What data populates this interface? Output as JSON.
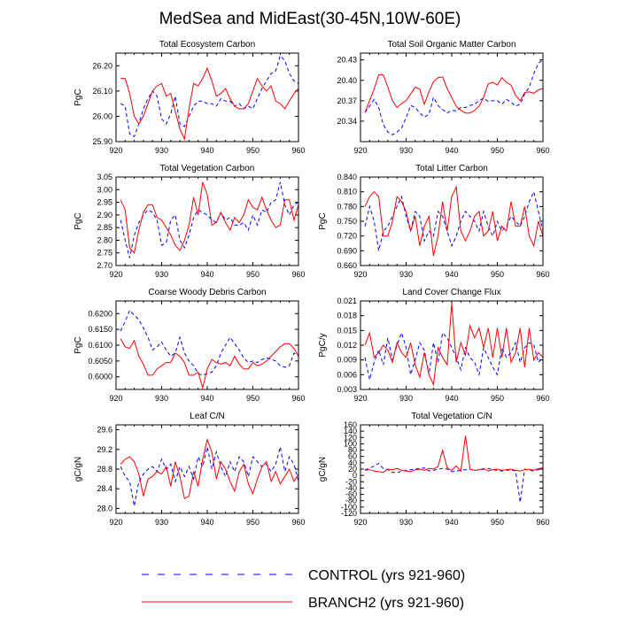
{
  "figure": {
    "title": "MedSea and MidEast(30-45N,10W-60E)",
    "legend": [
      {
        "label": "CONTROL (yrs 921-960)",
        "color": "#0000ff",
        "dash": true
      },
      {
        "label": "BRANCH2 (yrs 921-960)",
        "color": "#ff0000",
        "dash": false
      }
    ]
  },
  "chart_data": [
    {
      "type": "line",
      "title": "Total Ecosystem Carbon",
      "ylabel": "PgC",
      "xlabel": "",
      "xlim": [
        920,
        960
      ],
      "xticks": [
        920,
        930,
        940,
        950,
        960
      ],
      "ylim": [
        25.9,
        26.25
      ],
      "yticks": [
        25.9,
        26.0,
        26.1,
        26.2
      ],
      "ytick_labels": [
        "25.90",
        "26.00",
        "26.10",
        "26.20"
      ],
      "x_start": 921,
      "series": [
        {
          "name": "CONTROL",
          "color": "#0000ff",
          "dashed": true,
          "values": [
            26.05,
            26.04,
            25.93,
            25.92,
            25.97,
            26.03,
            26.07,
            26.1,
            26.08,
            25.99,
            25.97,
            26.01,
            26.08,
            25.97,
            25.96,
            26.0,
            26.04,
            26.06,
            26.06,
            26.05,
            26.05,
            26.04,
            26.07,
            26.06,
            26.06,
            26.04,
            26.05,
            26.03,
            26.04,
            26.03,
            26.07,
            26.11,
            26.14,
            26.17,
            26.18,
            26.24,
            26.22,
            26.17,
            26.14,
            26.13
          ]
        },
        {
          "name": "BRANCH2",
          "color": "#ff0000",
          "dashed": false,
          "values": [
            26.15,
            26.15,
            26.09,
            26.0,
            25.97,
            26.0,
            26.05,
            26.1,
            26.12,
            26.13,
            26.08,
            26.09,
            26.02,
            25.95,
            25.91,
            26.03,
            26.13,
            26.12,
            26.15,
            26.19,
            26.14,
            26.08,
            26.09,
            26.11,
            26.07,
            26.04,
            26.03,
            26.03,
            26.05,
            26.1,
            26.15,
            26.12,
            26.1,
            26.12,
            26.06,
            26.05,
            26.03,
            26.06,
            26.09,
            26.11
          ]
        }
      ]
    },
    {
      "type": "line",
      "title": "Total Soil Organic Matter Carbon",
      "ylabel": "",
      "xlabel": "",
      "xlim": [
        920,
        960
      ],
      "xticks": [
        920,
        930,
        940,
        950,
        960
      ],
      "ylim": [
        20.31,
        20.44
      ],
      "yticks": [
        20.34,
        20.37,
        20.4,
        20.43
      ],
      "ytick_labels": [
        "20.34",
        "20.37",
        "20.40",
        "20.43"
      ],
      "x_start": 921,
      "series": [
        {
          "name": "CONTROL",
          "color": "#0000ff",
          "dashed": true,
          "values": [
            20.353,
            20.362,
            20.372,
            20.36,
            20.335,
            20.324,
            20.32,
            20.324,
            20.33,
            20.345,
            20.363,
            20.36,
            20.352,
            20.346,
            20.35,
            20.375,
            20.363,
            20.357,
            20.352,
            20.356,
            20.355,
            20.36,
            20.36,
            20.363,
            20.365,
            20.37,
            20.374,
            20.369,
            20.37,
            20.37,
            20.365,
            20.372,
            20.368,
            20.362,
            20.365,
            20.38,
            20.39,
            20.41,
            20.425,
            20.43
          ]
        },
        {
          "name": "BRANCH2",
          "color": "#ff0000",
          "dashed": false,
          "values": [
            20.353,
            20.37,
            20.387,
            20.408,
            20.408,
            20.39,
            20.37,
            20.36,
            20.366,
            20.37,
            20.38,
            20.39,
            20.387,
            20.365,
            20.383,
            20.398,
            20.404,
            20.405,
            20.388,
            20.375,
            20.362,
            20.356,
            20.352,
            20.352,
            20.356,
            20.362,
            20.375,
            20.395,
            20.397,
            20.393,
            20.404,
            20.397,
            20.393,
            20.378,
            20.37,
            20.382,
            20.383,
            20.381,
            20.386,
            20.388
          ]
        }
      ]
    },
    {
      "type": "line",
      "title": "Total Vegetation Carbon",
      "ylabel": "PgC",
      "xlabel": "",
      "xlim": [
        920,
        960
      ],
      "xticks": [
        920,
        930,
        940,
        950,
        960
      ],
      "ylim": [
        2.7,
        3.05
      ],
      "yticks": [
        2.7,
        2.75,
        2.8,
        2.85,
        2.9,
        2.95,
        3.0,
        3.05
      ],
      "ytick_labels": [
        "2.70",
        "2.75",
        "2.80",
        "2.85",
        "2.90",
        "2.95",
        "3.00",
        "3.05"
      ],
      "x_start": 921,
      "series": [
        {
          "name": "CONTROL",
          "color": "#0000ff",
          "dashed": true,
          "values": [
            2.88,
            2.8,
            2.73,
            2.82,
            2.87,
            2.9,
            2.92,
            2.91,
            2.88,
            2.78,
            2.79,
            2.88,
            2.9,
            2.8,
            2.77,
            2.82,
            2.89,
            2.92,
            2.91,
            2.9,
            2.88,
            2.87,
            2.91,
            2.88,
            2.89,
            2.86,
            2.86,
            2.87,
            2.84,
            2.9,
            2.86,
            2.92,
            2.91,
            2.95,
            2.96,
            3.03,
            2.94,
            2.9,
            2.94,
            2.95
          ]
        },
        {
          "name": "BRANCH2",
          "color": "#ff0000",
          "dashed": false,
          "values": [
            2.96,
            2.92,
            2.77,
            2.75,
            2.84,
            2.91,
            2.94,
            2.94,
            2.89,
            2.88,
            2.85,
            2.82,
            2.78,
            2.76,
            2.8,
            2.86,
            2.97,
            2.9,
            3.03,
            2.98,
            2.86,
            2.87,
            2.91,
            2.87,
            2.84,
            2.89,
            2.87,
            2.9,
            2.96,
            2.93,
            2.92,
            2.97,
            2.92,
            2.88,
            2.85,
            2.86,
            2.96,
            2.96,
            2.88,
            2.94
          ]
        }
      ]
    },
    {
      "type": "line",
      "title": "Total Litter Carbon",
      "ylabel": "PgC",
      "xlabel": "",
      "xlim": [
        920,
        960
      ],
      "xticks": [
        920,
        930,
        940,
        950,
        960
      ],
      "ylim": [
        0.66,
        0.84
      ],
      "yticks": [
        0.66,
        0.69,
        0.72,
        0.75,
        0.78,
        0.81,
        0.84
      ],
      "ytick_labels": [
        "0.660",
        "0.690",
        "0.720",
        "0.750",
        "0.780",
        "0.810",
        "0.840"
      ],
      "x_start": 921,
      "series": [
        {
          "name": "CONTROL",
          "color": "#0000ff",
          "dashed": true,
          "values": [
            0.74,
            0.78,
            0.75,
            0.69,
            0.73,
            0.74,
            0.76,
            0.78,
            0.8,
            0.76,
            0.73,
            0.77,
            0.76,
            0.71,
            0.73,
            0.72,
            0.77,
            0.76,
            0.73,
            0.7,
            0.72,
            0.75,
            0.77,
            0.76,
            0.75,
            0.73,
            0.77,
            0.74,
            0.72,
            0.75,
            0.73,
            0.74,
            0.76,
            0.75,
            0.74,
            0.76,
            0.79,
            0.81,
            0.77,
            0.73
          ]
        },
        {
          "name": "BRANCH2",
          "color": "#ff0000",
          "dashed": false,
          "values": [
            0.78,
            0.8,
            0.81,
            0.8,
            0.72,
            0.72,
            0.75,
            0.8,
            0.79,
            0.77,
            0.73,
            0.76,
            0.7,
            0.74,
            0.76,
            0.68,
            0.72,
            0.79,
            0.73,
            0.8,
            0.82,
            0.73,
            0.71,
            0.73,
            0.76,
            0.77,
            0.72,
            0.73,
            0.77,
            0.71,
            0.74,
            0.73,
            0.79,
            0.74,
            0.74,
            0.78,
            0.72,
            0.7,
            0.75,
            0.72
          ]
        }
      ]
    },
    {
      "type": "line",
      "title": "Coarse Woody Debris Carbon",
      "ylabel": "PgC",
      "xlabel": "",
      "xlim": [
        920,
        960
      ],
      "xticks": [
        920,
        930,
        940,
        950,
        960
      ],
      "ylim": [
        0.596,
        0.624
      ],
      "yticks": [
        0.6,
        0.605,
        0.61,
        0.615,
        0.62
      ],
      "ytick_labels": [
        "0.6000",
        "0.6050",
        "0.6100",
        "0.6150",
        "0.6200"
      ],
      "x_start": 921,
      "series": [
        {
          "name": "CONTROL",
          "color": "#0000ff",
          "dashed": true,
          "values": [
            0.6145,
            0.6175,
            0.621,
            0.6195,
            0.618,
            0.6155,
            0.6125,
            0.6085,
            0.6095,
            0.611,
            0.6085,
            0.6065,
            0.6075,
            0.6125,
            0.6075,
            0.605,
            0.6035,
            0.601,
            0.6005,
            0.601,
            0.6015,
            0.6035,
            0.6075,
            0.61,
            0.6125,
            0.6105,
            0.6085,
            0.606,
            0.6045,
            0.605,
            0.6045,
            0.6055,
            0.606,
            0.6055,
            0.605,
            0.6035,
            0.603,
            0.6035,
            0.6075,
            0.6065
          ]
        },
        {
          "name": "BRANCH2",
          "color": "#ff0000",
          "dashed": false,
          "values": [
            0.612,
            0.6095,
            0.609,
            0.6115,
            0.6065,
            0.604,
            0.6005,
            0.6005,
            0.6025,
            0.6035,
            0.6045,
            0.6045,
            0.6075,
            0.6065,
            0.6045,
            0.6005,
            0.6005,
            0.6015,
            0.5965,
            0.6025,
            0.6055,
            0.6045,
            0.604,
            0.6045,
            0.6035,
            0.6065,
            0.604,
            0.6025,
            0.6025,
            0.6045,
            0.6035,
            0.604,
            0.605,
            0.6065,
            0.608,
            0.6095,
            0.6105,
            0.6105,
            0.609,
            0.6065
          ]
        }
      ]
    },
    {
      "type": "line",
      "title": "Land Cover Change Flux",
      "ylabel": "PgC/y",
      "xlabel": "",
      "xlim": [
        920,
        960
      ],
      "xticks": [
        920,
        930,
        940,
        950,
        960
      ],
      "ylim": [
        0.003,
        0.021
      ],
      "yticks": [
        0.003,
        0.006,
        0.009,
        0.012,
        0.015,
        0.018,
        0.021
      ],
      "ytick_labels": [
        "0.003",
        "0.006",
        "0.009",
        "0.012",
        "0.015",
        "0.018",
        "0.021"
      ],
      "x_start": 921,
      "series": [
        {
          "name": "CONTROL",
          "color": "#0000ff",
          "dashed": true,
          "values": [
            0.0095,
            0.005,
            0.0085,
            0.011,
            0.008,
            0.0135,
            0.009,
            0.012,
            0.0145,
            0.0115,
            0.006,
            0.009,
            0.0125,
            0.011,
            0.006,
            0.0125,
            0.0085,
            0.0145,
            0.0135,
            0.0115,
            0.0095,
            0.007,
            0.0115,
            0.0095,
            0.0085,
            0.006,
            0.0115,
            0.0095,
            0.0075,
            0.006,
            0.0115,
            0.0095,
            0.0105,
            0.0125,
            0.0085,
            0.0115,
            0.0125,
            0.012,
            0.0085,
            0.0095
          ]
        },
        {
          "name": "BRANCH2",
          "color": "#ff0000",
          "dashed": false,
          "values": [
            0.012,
            0.0145,
            0.0095,
            0.0105,
            0.012,
            0.011,
            0.0085,
            0.0125,
            0.0105,
            0.0095,
            0.0125,
            0.008,
            0.0055,
            0.0105,
            0.006,
            0.004,
            0.0115,
            0.0095,
            0.008,
            0.0205,
            0.0085,
            0.0125,
            0.01,
            0.016,
            0.0135,
            0.0155,
            0.0115,
            0.0155,
            0.0095,
            0.0155,
            0.0095,
            0.0155,
            0.0085,
            0.0105,
            0.0155,
            0.0075,
            0.0155,
            0.009,
            0.0105,
            0.0095
          ]
        }
      ]
    },
    {
      "type": "line",
      "title": "Leaf C/N",
      "ylabel": "gC/gN",
      "xlabel": "",
      "xlim": [
        920,
        960
      ],
      "xticks": [
        920,
        930,
        940,
        950,
        960
      ],
      "ylim": [
        27.9,
        29.7
      ],
      "yticks": [
        28.0,
        28.4,
        28.8,
        29.2,
        29.6
      ],
      "ytick_labels": [
        "28.0",
        "28.4",
        "28.8",
        "29.2",
        "29.6"
      ],
      "x_start": 921,
      "series": [
        {
          "name": "CONTROL",
          "color": "#0000ff",
          "dashed": true,
          "values": [
            28.85,
            28.65,
            28.55,
            28.05,
            28.55,
            28.7,
            28.8,
            28.85,
            28.75,
            29.0,
            28.8,
            28.9,
            28.55,
            28.85,
            28.65,
            28.85,
            28.6,
            29.05,
            28.85,
            29.25,
            28.8,
            29.15,
            28.85,
            28.65,
            28.95,
            28.75,
            29.05,
            28.95,
            28.65,
            29.05,
            28.95,
            28.85,
            28.9,
            28.75,
            28.9,
            29.25,
            28.75,
            29.05,
            28.9,
            28.55
          ]
        },
        {
          "name": "BRANCH2",
          "color": "#ff0000",
          "dashed": false,
          "values": [
            28.9,
            29.0,
            29.05,
            28.95,
            28.7,
            28.25,
            28.6,
            28.65,
            28.75,
            28.7,
            28.85,
            28.45,
            28.95,
            28.65,
            28.2,
            28.25,
            28.75,
            28.45,
            29.0,
            29.4,
            29.15,
            28.6,
            28.95,
            28.8,
            28.55,
            28.35,
            28.75,
            28.9,
            28.5,
            28.3,
            28.6,
            28.85,
            28.95,
            28.55,
            28.75,
            28.5,
            28.65,
            28.8,
            28.55,
            28.7
          ]
        }
      ]
    },
    {
      "type": "line",
      "title": "Total Vegetation C/N",
      "ylabel": "gC/gN",
      "xlabel": "",
      "xlim": [
        920,
        960
      ],
      "xticks": [
        920,
        930,
        940,
        950,
        960
      ],
      "ylim": [
        -120,
        160
      ],
      "yticks": [
        -120,
        -100,
        -80,
        -60,
        -40,
        -20,
        0,
        20,
        40,
        60,
        80,
        100,
        120,
        140,
        160
      ],
      "ytick_labels": [
        "-120",
        "-100",
        "-80",
        "-60",
        "-40",
        "-20",
        "0",
        "20",
        "40",
        "60",
        "80",
        "100",
        "120",
        "140",
        "160"
      ],
      "x_start": 921,
      "series": [
        {
          "name": "CONTROL",
          "color": "#0000ff",
          "dashed": true,
          "values": [
            18,
            22,
            30,
            38,
            22,
            18,
            10,
            8,
            14,
            16,
            18,
            20,
            22,
            24,
            14,
            16,
            20,
            22,
            20,
            12,
            14,
            16,
            18,
            20,
            16,
            18,
            20,
            22,
            18,
            16,
            14,
            16,
            18,
            14,
            -85,
            20,
            16,
            14,
            18,
            20
          ]
        },
        {
          "name": "BRANCH2",
          "color": "#ff0000",
          "dashed": false,
          "values": [
            16,
            18,
            14,
            12,
            10,
            20,
            18,
            22,
            16,
            14,
            12,
            18,
            20,
            16,
            22,
            20,
            28,
            80,
            24,
            16,
            30,
            14,
            125,
            20,
            16,
            18,
            22,
            14,
            18,
            20,
            16,
            18,
            20,
            16,
            14,
            18,
            20,
            16,
            22,
            24
          ]
        }
      ]
    }
  ]
}
